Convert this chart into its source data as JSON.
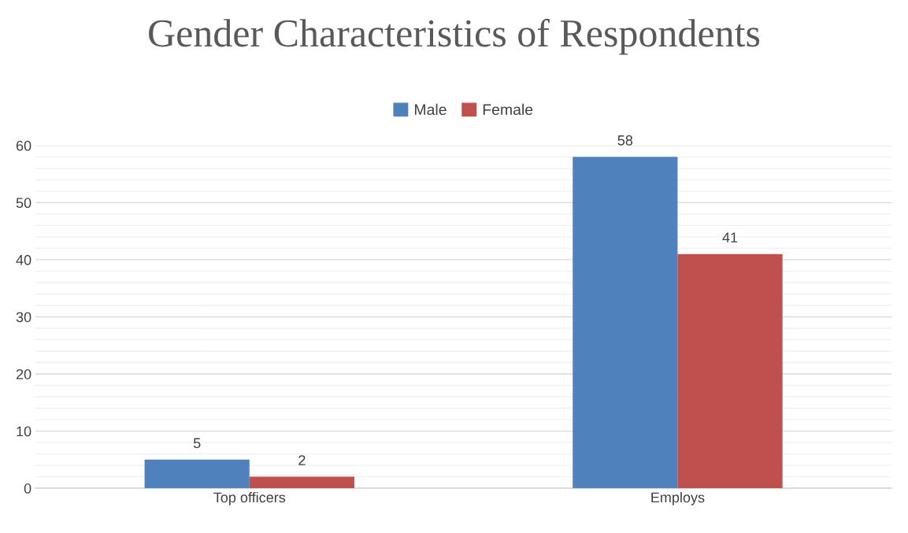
{
  "chart_data": {
    "type": "bar",
    "title": "Gender Characteristics of Respondents",
    "categories": [
      "Top officers",
      "Employs"
    ],
    "series": [
      {
        "name": "Male",
        "color": "#4f81bd",
        "values": [
          5,
          58
        ]
      },
      {
        "name": "Female",
        "color": "#c0504d",
        "values": [
          2,
          41
        ]
      }
    ],
    "ylim": [
      0,
      60
    ],
    "yticks": [
      0,
      {
        "value": 2,
        "label": null
      },
      {
        "value": 4,
        "label": null
      },
      {
        "value": 6,
        "label": null
      },
      {
        "value": 8,
        "label": null
      },
      10,
      {
        "value": 12,
        "label": null
      },
      {
        "value": 14,
        "label": null
      },
      {
        "value": 16,
        "label": null
      },
      {
        "value": 18,
        "label": null
      },
      20,
      {
        "value": 22,
        "label": null
      },
      {
        "value": 24,
        "label": null
      },
      {
        "value": 26,
        "label": null
      },
      {
        "value": 28,
        "label": null
      },
      30,
      {
        "value": 32,
        "label": null
      },
      {
        "value": 34,
        "label": null
      },
      {
        "value": 36,
        "label": null
      },
      {
        "value": 38,
        "label": null
      },
      40,
      {
        "value": 42,
        "label": null
      },
      {
        "value": 44,
        "label": null
      },
      {
        "value": 46,
        "label": null
      },
      {
        "value": 48,
        "label": null
      },
      50,
      {
        "value": 52,
        "label": null
      },
      {
        "value": 54,
        "label": null
      },
      {
        "value": 56,
        "label": null
      },
      {
        "value": 58,
        "label": null
      },
      60
    ],
    "grid": "y",
    "legend": "top",
    "data_labels": true
  }
}
